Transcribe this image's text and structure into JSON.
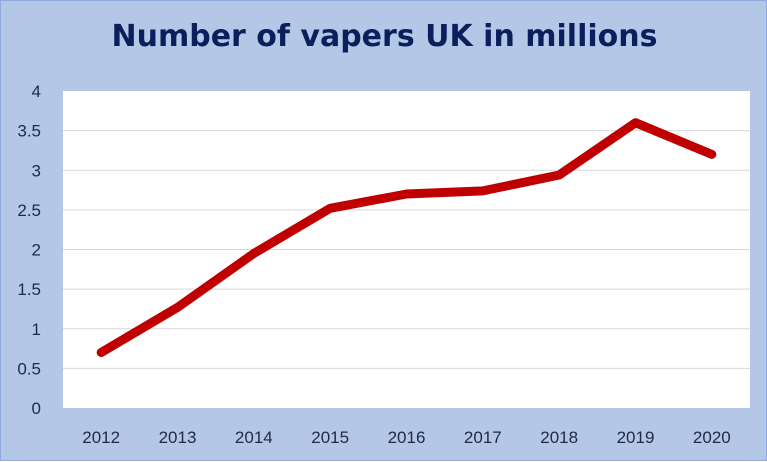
{
  "chart_data": {
    "type": "line",
    "title": "Number of vapers UK in millions",
    "categories": [
      "2012",
      "2013",
      "2014",
      "2015",
      "2016",
      "2017",
      "2018",
      "2019",
      "2020"
    ],
    "series": [
      {
        "values": [
          0.7,
          1.27,
          1.95,
          2.52,
          2.7,
          2.74,
          2.94,
          3.6,
          3.2
        ],
        "color": "#c00000"
      }
    ],
    "y_ticks": [
      "0",
      "0.5",
      "1",
      "1.5",
      "2",
      "2.5",
      "3",
      "3.5",
      "4"
    ],
    "ylim": [
      0,
      4
    ],
    "grid": true,
    "legend": "none",
    "colors": {
      "background": "#b4c7e7",
      "plot_area": "#ffffff",
      "gridline": "#d9d9d9",
      "title": "#0a1f5c"
    }
  }
}
